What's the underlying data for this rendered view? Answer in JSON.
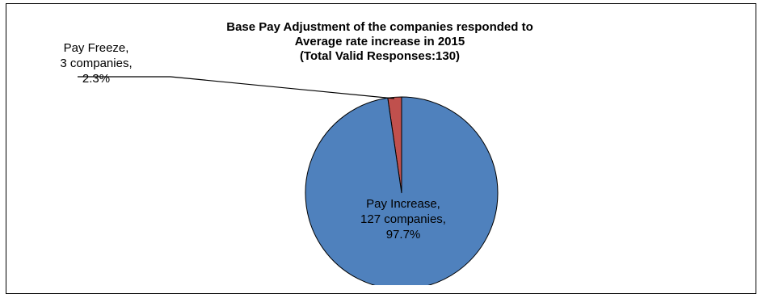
{
  "chart_data": {
    "type": "pie",
    "title": [
      "Base Pay Adjustment of the companies responded to",
      "Average rate increase in 2015",
      "(Total Valid Responses:130)"
    ],
    "slices": [
      {
        "name": "Pay Increase",
        "value": 127,
        "percent": 97.7,
        "color": "#4F81BD",
        "label_lines": [
          "Pay Increase,",
          "127 companies,",
          "97.7%"
        ]
      },
      {
        "name": "Pay Freeze",
        "value": 3,
        "percent": 2.3,
        "color": "#C0504D",
        "label_lines": [
          "Pay Freeze,",
          "3 companies,",
          "2.3%"
        ]
      }
    ],
    "start_angle_deg": 0,
    "direction": "counterclockwise",
    "legend": "none"
  }
}
